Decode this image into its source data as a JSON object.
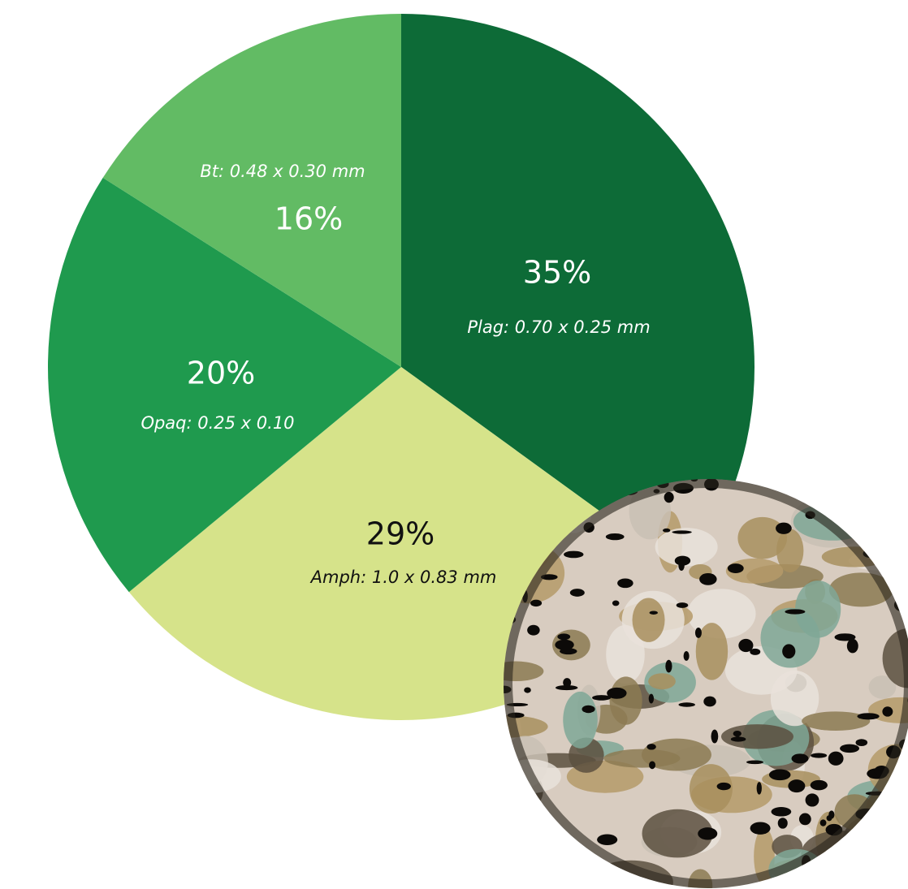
{
  "chart_data": {
    "type": "pie",
    "categories": [
      "Plag: 0.70 x 0.25 mm",
      "Amph: 1.0 x 0.83 mm",
      "Opaq: 0.25 x 0.10",
      "Bt: 0.48 x 0.30 mm"
    ],
    "values": [
      35,
      29,
      20,
      16
    ],
    "value_labels": [
      "35%",
      "29%",
      "20%",
      "16%"
    ],
    "colors": [
      "#0d6b37",
      "#d6e38a",
      "#1f9a4e",
      "#62bb64"
    ],
    "label_colors": [
      "#ffffff",
      "#111111",
      "#ffffff",
      "#ffffff"
    ]
  }
}
